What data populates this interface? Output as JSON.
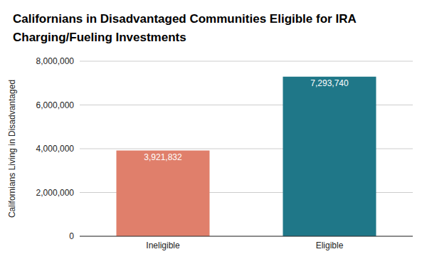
{
  "chart_data": {
    "type": "bar",
    "title": "Californians in Disadvantaged Communities Eligible for IRA Charging/Fueling Investments",
    "y_label": "Californians Living in Disadvantaged",
    "categories": [
      "Ineligible",
      "Eligible"
    ],
    "values": [
      3921832,
      7293740
    ],
    "value_labels": [
      "3,921,832",
      "7,293,740"
    ],
    "colors": [
      "#e07f6b",
      "#1f7788"
    ],
    "ylim": [
      0,
      8000000
    ],
    "yticks": [
      0,
      {
        "value": 2000000,
        "label": "2,000,000"
      },
      {
        "value": 4000000,
        "label": "4,000,000"
      },
      {
        "value": 6000000,
        "label": "6,000,000"
      },
      {
        "value": 8000000,
        "label": "8,000,000"
      }
    ],
    "grid": true,
    "data_labels": true
  }
}
